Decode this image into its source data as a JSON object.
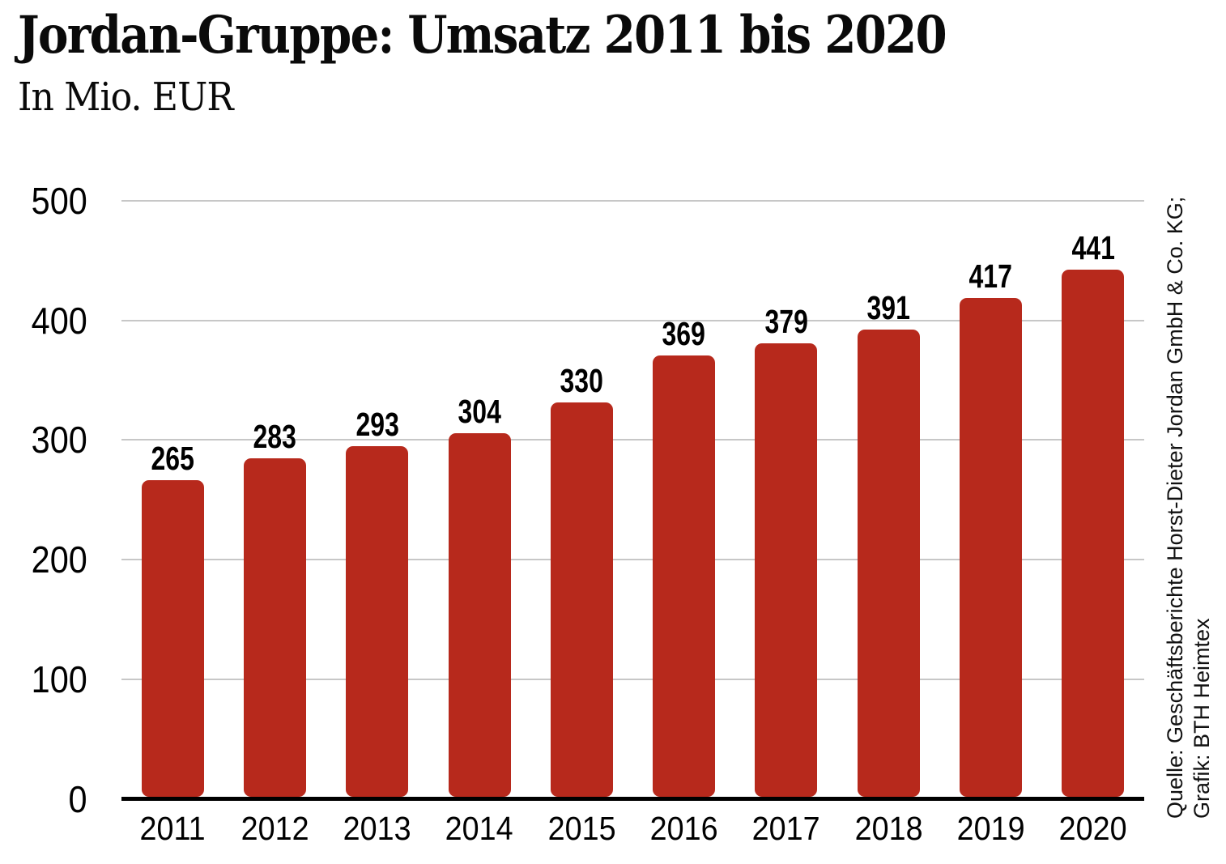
{
  "header": {
    "title": "Jordan-Gruppe: Umsatz 2011 bis 2020",
    "subtitle": "In Mio. EUR"
  },
  "chart_data": {
    "type": "bar",
    "title": "Jordan-Gruppe: Umsatz 2011 bis 2020",
    "subtitle": "In Mio. EUR",
    "categories": [
      "2011",
      "2012",
      "2013",
      "2014",
      "2015",
      "2016",
      "2017",
      "2018",
      "2019",
      "2020"
    ],
    "values": [
      265,
      283,
      293,
      304,
      330,
      369,
      379,
      391,
      417,
      441
    ],
    "xlabel": "",
    "ylabel": "",
    "ylim": [
      0,
      500
    ],
    "yticks": [
      0,
      100,
      200,
      300,
      400,
      500
    ],
    "grid": "horizontal-gray",
    "legend": "none",
    "value_labels": true,
    "bar_color": "#b7291c",
    "gridline_color": "#c7c7c7",
    "axis_color": "#000000"
  },
  "source": {
    "line1": "Quelle: Geschäftsberichte Horst-Dieter Jordan GmbH & Co. KG;",
    "line2": "Grafik: BTH Heimtex"
  }
}
